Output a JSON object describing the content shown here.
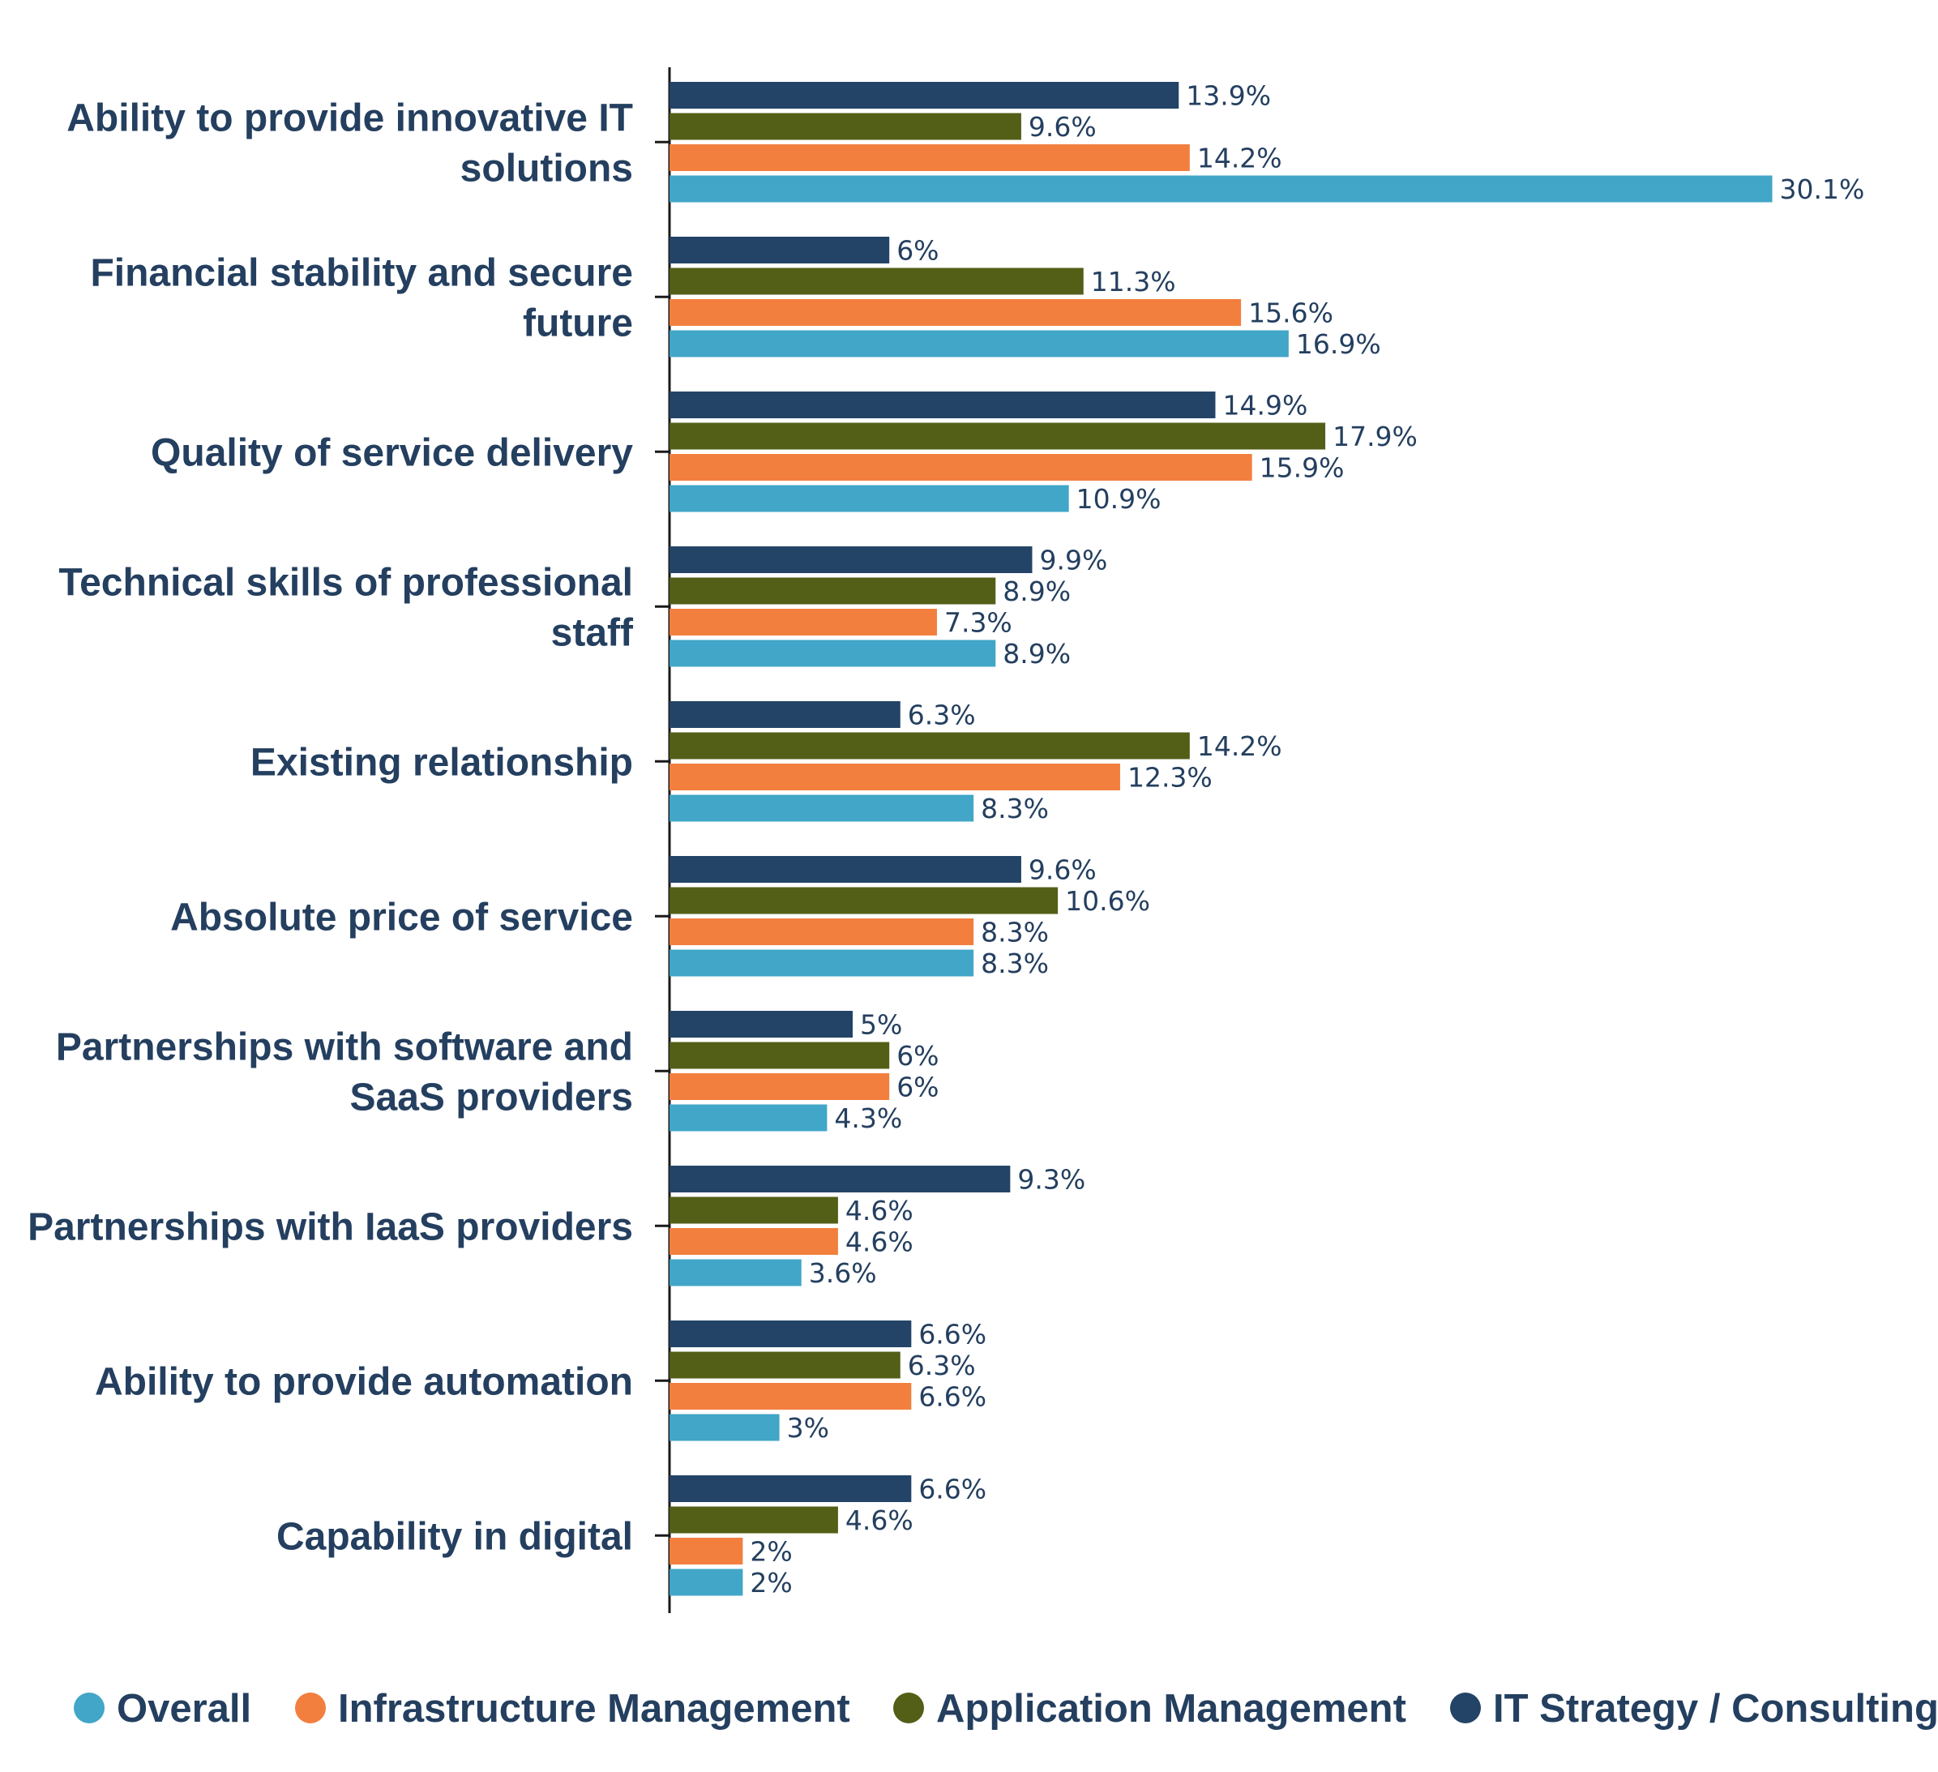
{
  "chart_data": {
    "type": "bar",
    "orientation": "horizontal",
    "categories": [
      [
        "Ability to provide innovative IT",
        "solutions"
      ],
      [
        "Financial stability and secure",
        "future"
      ],
      [
        "Quality of service delivery"
      ],
      [
        "Technical skills of professional",
        "staff"
      ],
      [
        "Existing relationship"
      ],
      [
        "Absolute price of service"
      ],
      [
        "Partnerships with software and",
        "SaaS providers"
      ],
      [
        "Partnerships with IaaS providers"
      ],
      [
        "Ability to provide automation"
      ],
      [
        "Capability in digital"
      ]
    ],
    "series": [
      {
        "name": "IT Strategy / Consulting",
        "color": "#234467",
        "values": [
          13.9,
          6,
          14.9,
          9.9,
          6.3,
          9.6,
          5,
          9.3,
          6.6,
          6.6
        ],
        "labels": [
          "13.9%",
          "6%",
          "14.9%",
          "9.9%",
          "6.3%",
          "9.6%",
          "5%",
          "9.3%",
          "6.6%",
          "6.6%"
        ]
      },
      {
        "name": "Application Management",
        "color": "#535f17",
        "values": [
          9.6,
          11.3,
          17.9,
          8.9,
          14.2,
          10.6,
          6,
          4.6,
          6.3,
          4.6
        ],
        "labels": [
          "9.6%",
          "11.3%",
          "17.9%",
          "8.9%",
          "14.2%",
          "10.6%",
          "6%",
          "4.6%",
          "6.3%",
          "4.6%"
        ]
      },
      {
        "name": "Infrastructure Management",
        "color": "#f37f3f",
        "values": [
          14.2,
          15.6,
          15.9,
          7.3,
          12.3,
          8.3,
          6,
          4.6,
          6.6,
          2
        ],
        "labels": [
          "14.2%",
          "15.6%",
          "15.9%",
          "7.3%",
          "12.3%",
          "8.3%",
          "6%",
          "4.6%",
          "6.6%",
          "2%"
        ]
      },
      {
        "name": "Overall",
        "color": "#41a6c7",
        "values": [
          30.1,
          16.9,
          10.9,
          8.9,
          8.3,
          8.3,
          4.3,
          3.6,
          3,
          2
        ],
        "labels": [
          "30.1%",
          "16.9%",
          "10.9%",
          "8.9%",
          "8.3%",
          "8.3%",
          "4.3%",
          "3.6%",
          "3%",
          "2%"
        ]
      }
    ],
    "legend": {
      "position": "bottom",
      "order": [
        "Overall",
        "Infrastructure Management",
        "Application Management",
        "IT Strategy / Consulting"
      ]
    },
    "xlim": [
      0,
      31
    ],
    "grid": false
  }
}
